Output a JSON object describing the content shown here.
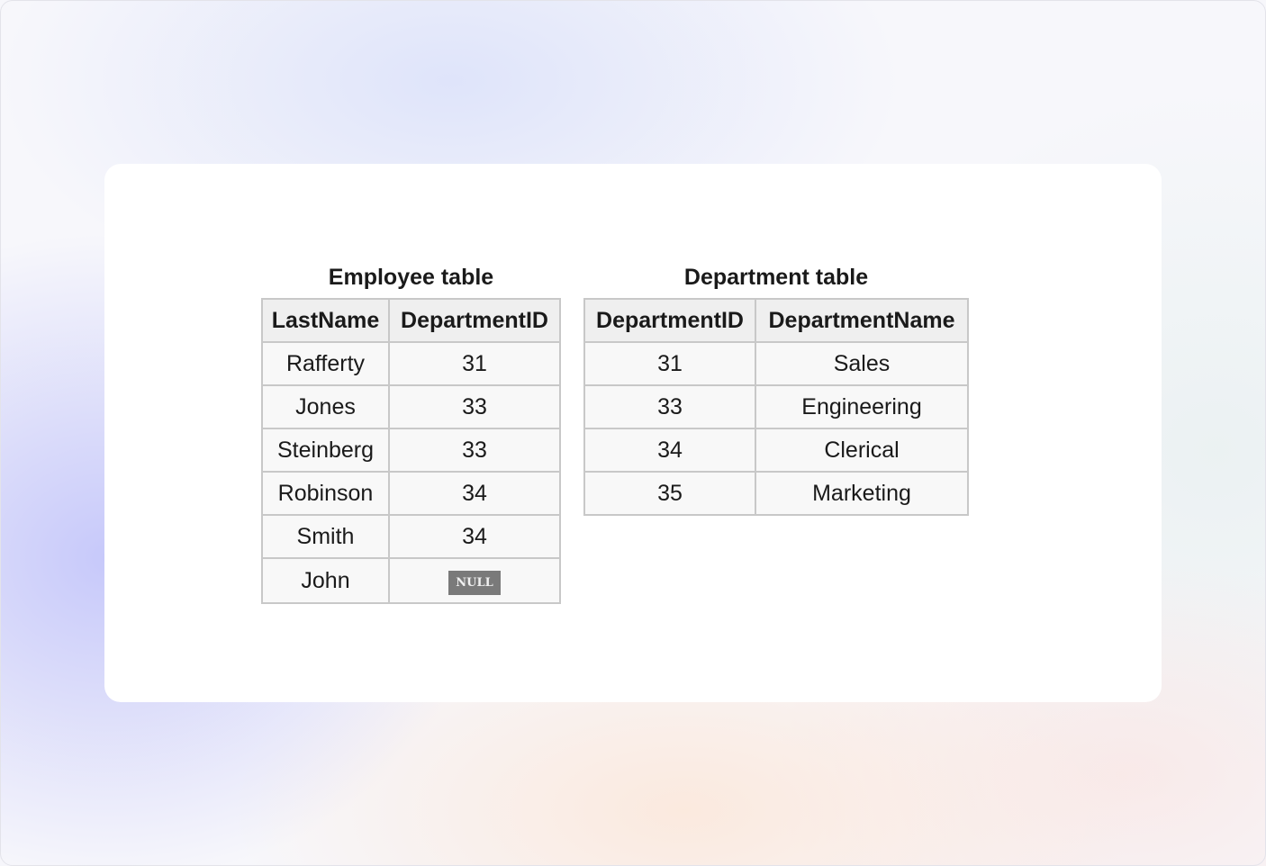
{
  "employee_table": {
    "caption": "Employee table",
    "headers": [
      "LastName",
      "DepartmentID"
    ],
    "rows": [
      [
        "Rafferty",
        "31"
      ],
      [
        "Jones",
        "33"
      ],
      [
        "Steinberg",
        "33"
      ],
      [
        "Robinson",
        "34"
      ],
      [
        "Smith",
        "34"
      ],
      [
        "John",
        "NULL"
      ]
    ]
  },
  "department_table": {
    "caption": "Department table",
    "headers": [
      "DepartmentID",
      "DepartmentName"
    ],
    "rows": [
      [
        "31",
        "Sales"
      ],
      [
        "33",
        "Engineering"
      ],
      [
        "34",
        "Clerical"
      ],
      [
        "35",
        "Marketing"
      ]
    ]
  }
}
